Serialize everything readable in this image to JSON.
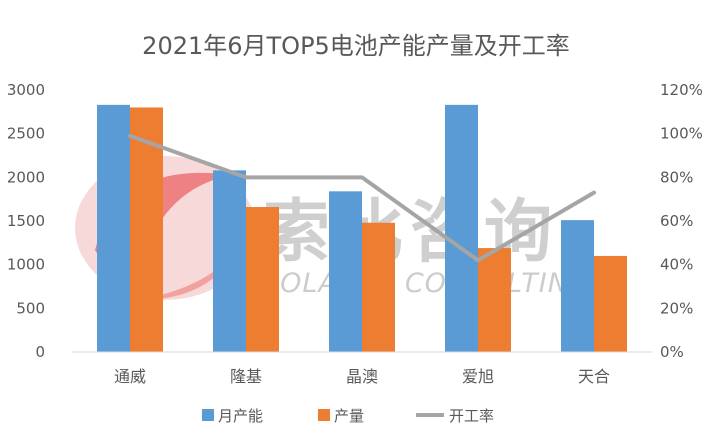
{
  "chart_data": {
    "type": "bar",
    "title": "2021年6月TOP5电池产能产量及开工率",
    "categories": [
      "通威",
      "隆基",
      "晶澳",
      "爱旭",
      "天合"
    ],
    "series": [
      {
        "name": "月产能",
        "type": "bar",
        "axis": "left",
        "color": "#5b9bd5",
        "values": [
          2830,
          2080,
          1840,
          2830,
          1510
        ]
      },
      {
        "name": "产量",
        "type": "bar",
        "axis": "left",
        "color": "#ed7d31",
        "values": [
          2800,
          1660,
          1480,
          1190,
          1100
        ]
      },
      {
        "name": "开工率",
        "type": "line",
        "axis": "right",
        "color": "#a5a5a5",
        "values": [
          0.99,
          0.8,
          0.8,
          0.42,
          0.73
        ]
      }
    ],
    "y_left": {
      "min": 0,
      "max": 3000,
      "ticks": [
        "0",
        "500",
        "1000",
        "1500",
        "2000",
        "2500",
        "3000"
      ]
    },
    "y_right": {
      "min": 0,
      "max": 1.2,
      "ticks": [
        "0%",
        "20%",
        "40%",
        "60%",
        "80%",
        "100%",
        "120%"
      ]
    },
    "grid": false,
    "legend_position": "bottom"
  },
  "watermark": {
    "cn": "索比咨询",
    "en": "SOLARBE CONSULTING",
    "logo_colors": [
      "#e8393a",
      "#f5a3a3"
    ]
  }
}
